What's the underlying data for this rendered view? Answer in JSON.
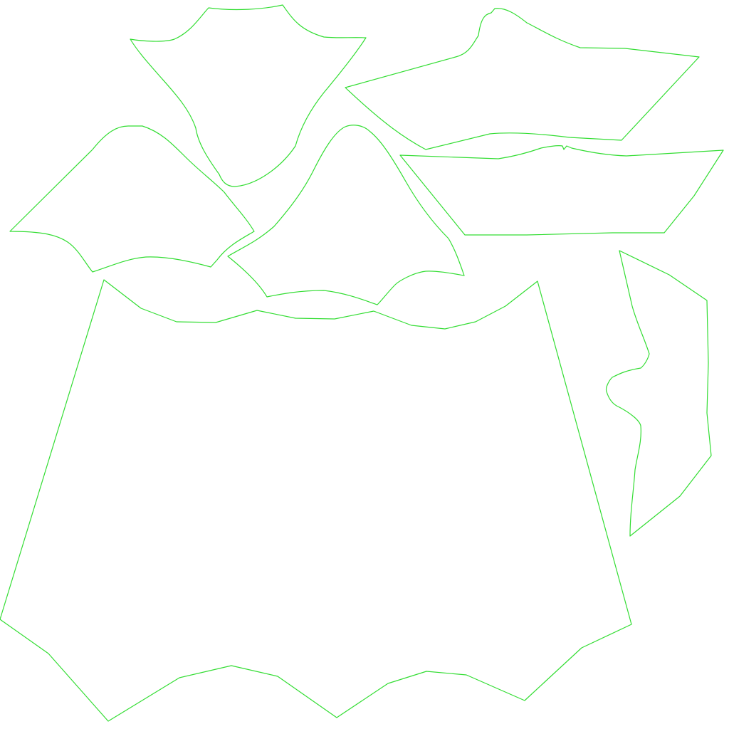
{
  "background": "#ffffff",
  "stroke_color": "#33dd33"
}
